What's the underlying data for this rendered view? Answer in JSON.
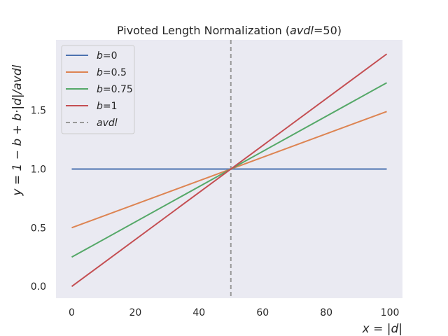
{
  "chart_data": {
    "type": "line",
    "title": "Pivoted Length Normalization (",
    "title_param": "avdl",
    "title_value": "=50)",
    "xlabel": "x = |d|",
    "ylabel": "y = 1 − b + b·|d|/avdl",
    "xlim": [
      -4.95,
      103.95
    ],
    "ylim": [
      -0.1,
      2.1
    ],
    "x_ticks": [
      0,
      20,
      40,
      60,
      80,
      100
    ],
    "x_tick_labels": [
      "0",
      "20",
      "40",
      "60",
      "80",
      "100"
    ],
    "y_ticks": [
      0.0,
      0.5,
      1.0,
      1.5
    ],
    "y_tick_labels": [
      "0.0",
      "0.5",
      "1.0",
      "1.5"
    ],
    "grid": false,
    "legend_position": "top-left",
    "background_color": "#eaeaf2",
    "x": [
      0,
      99
    ],
    "series": [
      {
        "name_var": "b",
        "name_val": "=0",
        "color": "#4c72b0",
        "values": [
          1.0,
          1.0
        ]
      },
      {
        "name_var": "b",
        "name_val": "=0.5",
        "color": "#dd8452",
        "values": [
          0.5,
          1.49
        ]
      },
      {
        "name_var": "b",
        "name_val": "=0.75",
        "color": "#55a868",
        "values": [
          0.25,
          1.735
        ]
      },
      {
        "name_var": "b",
        "name_val": "=1",
        "color": "#c44e52",
        "values": [
          0.0,
          1.98
        ]
      }
    ],
    "vline": {
      "name": "avdl",
      "x": 50,
      "color": "#999999",
      "style": "dashed"
    }
  }
}
